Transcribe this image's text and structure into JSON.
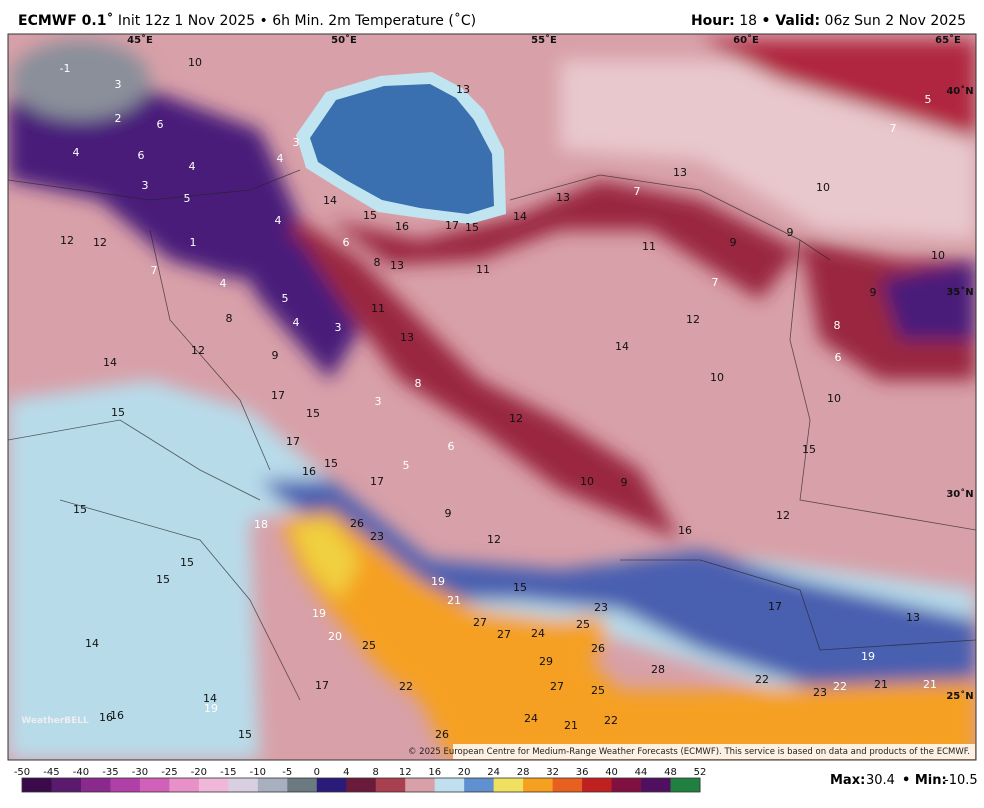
{
  "header": {
    "model": "ECMWF 0.1˚",
    "product": "Init 12z 1 Nov 2025 • 6h Min. 2m Temperature (˚C)",
    "hour_label": "Hour:",
    "hour": "18",
    "valid_label": "• Valid:",
    "valid": "06z Sun 2 Nov 2025"
  },
  "map": {
    "lon_labels": [
      "45˚E",
      "50˚E",
      "55˚E",
      "60˚E",
      "65˚E"
    ],
    "lat_labels": [
      "40˚N",
      "35˚N",
      "30˚N",
      "25˚N"
    ],
    "point_values": [
      -1,
      3,
      10,
      2,
      6,
      4,
      6,
      4,
      4,
      3,
      3,
      5,
      14,
      15,
      16,
      17,
      15,
      14,
      13,
      13,
      13,
      7,
      10,
      5,
      7,
      12,
      12,
      1,
      4,
      6,
      8,
      13,
      11,
      11,
      9,
      9,
      10,
      7,
      4,
      5,
      4,
      3,
      11,
      7,
      9,
      12,
      8,
      8,
      12,
      9,
      13,
      14,
      6,
      14,
      10,
      8,
      10,
      17,
      15,
      3,
      12,
      15,
      17,
      6,
      15,
      16,
      15,
      5,
      17,
      10,
      9,
      15,
      9,
      16,
      12,
      18,
      26,
      23,
      12,
      15,
      15,
      19,
      15,
      21,
      17,
      23,
      19,
      13,
      27,
      27,
      24,
      25,
      20,
      14,
      25,
      26,
      19,
      29,
      28,
      17,
      22,
      22,
      27,
      25,
      23,
      22,
      21,
      21,
      14,
      19,
      16,
      16,
      24,
      21,
      22,
      15,
      26
    ],
    "logo": "WeatherBELL",
    "copyright": "© 2025 European Centre for Medium-Range Weather Forecasts (ECMWF). This service is based on data and products of the ECMWF."
  },
  "colorbar": {
    "ticks": [
      -50,
      -45,
      -40,
      -35,
      -30,
      -25,
      -20,
      -15,
      -10,
      -5,
      0,
      4,
      8,
      12,
      16,
      20,
      24,
      28,
      32,
      36,
      40,
      44,
      48,
      52
    ],
    "colors": [
      "#3a0a4a",
      "#5a1a6e",
      "#8a2a8e",
      "#b040a8",
      "#d060b8",
      "#e890c8",
      "#f0b8d8",
      "#d8d0e0",
      "#a8b0c0",
      "#6a7a80",
      "#2a1a7a",
      "#6a1a3a",
      "#a84050",
      "#d8a0a8",
      "#c0e0f0",
      "#6090d0",
      "#f0e060",
      "#f5a020",
      "#e86020",
      "#c02020",
      "#801040",
      "#501060",
      "#208040"
    ]
  },
  "stats": {
    "max_label": "Max:",
    "max": 30.4,
    "min_label": "• Min:",
    "min": -10.5
  }
}
